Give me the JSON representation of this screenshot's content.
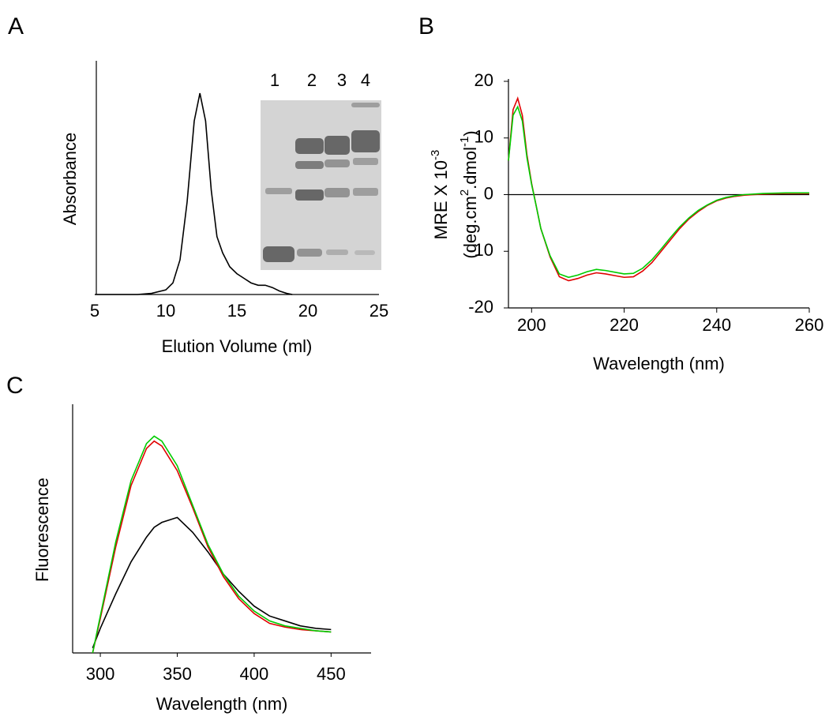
{
  "chart_data": [
    {
      "type": "line",
      "panel": "A",
      "x_label": "Elution Volume (ml)",
      "y_label": "Absorbance",
      "x": [
        5,
        8,
        9,
        10,
        10.5,
        11,
        11.5,
        12,
        12.4,
        12.8,
        13.2,
        13.6,
        14,
        14.5,
        15,
        15.5,
        16,
        16.5,
        17,
        17.5,
        18,
        18.5,
        18.9
      ],
      "series": [
        {
          "color": "#000000",
          "values": [
            0,
            0,
            0.005,
            0.02,
            0.05,
            0.15,
            0.4,
            0.75,
            0.87,
            0.75,
            0.45,
            0.25,
            0.18,
            0.12,
            0.09,
            0.07,
            0.05,
            0.04,
            0.04,
            0.03,
            0.015,
            0.005,
            0
          ]
        }
      ],
      "xlim": [
        5,
        25
      ],
      "xticks": [
        5,
        10,
        15,
        20,
        25
      ],
      "ylim": [
        0,
        1
      ],
      "inset": {
        "lane_labels": [
          "1",
          "2",
          "3",
          "4"
        ]
      }
    },
    {
      "type": "line",
      "panel": "B",
      "x_label": "Wavelength (nm)",
      "y_label": [
        [
          "MRE X 10",
          "-3"
        ],
        [
          "(deg.cm",
          "2",
          ".dmol",
          "-1",
          ")"
        ]
      ],
      "x": [
        195,
        196,
        197,
        198,
        199,
        200,
        201,
        202,
        204,
        206,
        208,
        210,
        212,
        214,
        216,
        218,
        220,
        222,
        224,
        226,
        228,
        230,
        232,
        234,
        236,
        238,
        240,
        242,
        244,
        246,
        248,
        250,
        255,
        260
      ],
      "series": [
        {
          "color": "#e00000",
          "values": [
            6,
            15,
            17,
            14,
            7,
            2,
            -2,
            -6,
            -11,
            -14.5,
            -15.2,
            -14.8,
            -14.2,
            -13.8,
            -14,
            -14.3,
            -14.6,
            -14.5,
            -13.5,
            -12,
            -10,
            -8,
            -6,
            -4.3,
            -3,
            -1.9,
            -1.1,
            -0.6,
            -0.3,
            -0.1,
            0,
            0.1,
            0.2,
            0.2
          ]
        },
        {
          "color": "#00cc00",
          "values": [
            6,
            14,
            15.5,
            13,
            6.5,
            1.8,
            -2,
            -6,
            -10.8,
            -14,
            -14.6,
            -14.2,
            -13.6,
            -13.2,
            -13.4,
            -13.7,
            -14,
            -13.9,
            -13,
            -11.5,
            -9.6,
            -7.6,
            -5.7,
            -4.1,
            -2.8,
            -1.8,
            -1,
            -0.5,
            -0.2,
            0,
            0.1,
            0.2,
            0.3,
            0.3
          ]
        }
      ],
      "xlim": [
        195,
        260
      ],
      "xticks": [
        200,
        220,
        240,
        260
      ],
      "ylim": [
        -20,
        20
      ],
      "yticks": [
        -20,
        -10,
        0,
        10,
        20
      ]
    },
    {
      "type": "line",
      "panel": "C",
      "x_label": "Wavelength (nm)",
      "y_label": "Fluorescence",
      "x": [
        295,
        300,
        310,
        320,
        330,
        335,
        340,
        350,
        360,
        370,
        380,
        390,
        400,
        410,
        420,
        430,
        440,
        450
      ],
      "series": [
        {
          "color": "#000000",
          "values": [
            0.02,
            0.1,
            0.24,
            0.37,
            0.47,
            0.51,
            0.53,
            0.55,
            0.49,
            0.41,
            0.32,
            0.25,
            0.19,
            0.15,
            0.13,
            0.11,
            0.1,
            0.095
          ]
        },
        {
          "color": "#e00000",
          "values": [
            0,
            0.14,
            0.43,
            0.68,
            0.83,
            0.86,
            0.84,
            0.74,
            0.59,
            0.43,
            0.31,
            0.22,
            0.16,
            0.12,
            0.105,
            0.095,
            0.09,
            0.085
          ]
        },
        {
          "color": "#00cc00",
          "values": [
            0,
            0.15,
            0.45,
            0.7,
            0.85,
            0.88,
            0.86,
            0.76,
            0.6,
            0.44,
            0.32,
            0.23,
            0.17,
            0.13,
            0.11,
            0.1,
            0.09,
            0.085
          ]
        }
      ],
      "xlim": [
        282,
        476
      ],
      "xticks": [
        300,
        350,
        400,
        450
      ],
      "ylim": [
        0,
        1
      ]
    }
  ]
}
